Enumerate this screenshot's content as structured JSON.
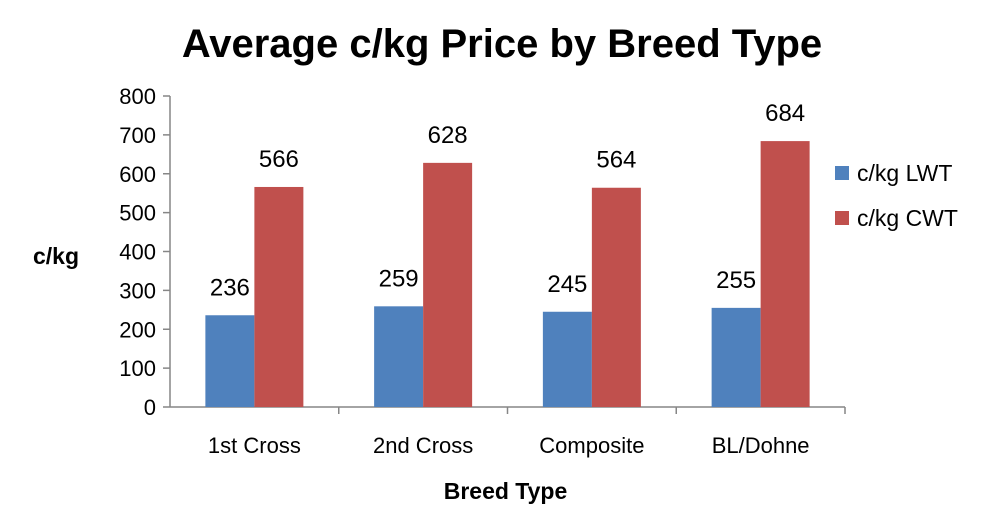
{
  "chart_data": {
    "type": "bar",
    "title": "Average c/kg Price by Breed Type",
    "xlabel": "Breed Type",
    "ylabel": "c/kg",
    "ylim": [
      0,
      800
    ],
    "yticks": [
      0,
      100,
      200,
      300,
      400,
      500,
      600,
      700,
      800
    ],
    "categories": [
      "1st Cross",
      "2nd Cross",
      "Composite",
      "BL/Dohne"
    ],
    "series": [
      {
        "name": "c/kg LWT",
        "values": [
          236,
          259,
          245,
          255
        ],
        "color": "#4F81BD"
      },
      {
        "name": "c/kg CWT",
        "values": [
          566,
          628,
          564,
          684
        ],
        "color": "#C0504D"
      }
    ],
    "legend": "right",
    "grid": false,
    "data_labels": true
  }
}
